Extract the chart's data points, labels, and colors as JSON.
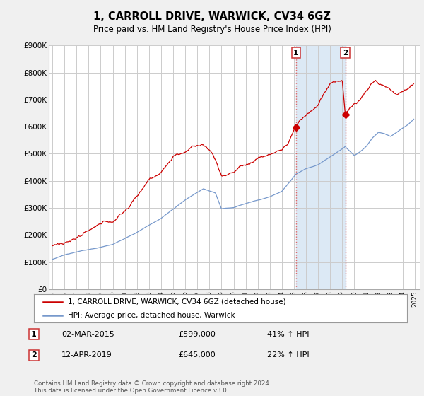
{
  "title": "1, CARROLL DRIVE, WARWICK, CV34 6GZ",
  "subtitle": "Price paid vs. HM Land Registry's House Price Index (HPI)",
  "ylim": [
    0,
    900000
  ],
  "yticks": [
    0,
    100000,
    200000,
    300000,
    400000,
    500000,
    600000,
    700000,
    800000,
    900000
  ],
  "ytick_labels": [
    "£0",
    "£100K",
    "£200K",
    "£300K",
    "£400K",
    "£500K",
    "£600K",
    "£700K",
    "£800K",
    "£900K"
  ],
  "hpi_color": "#7799cc",
  "price_color": "#cc0000",
  "annotation_fill": "#dce9f5",
  "vline_color": "#dd6666",
  "legend_price_label": "1, CARROLL DRIVE, WARWICK, CV34 6GZ (detached house)",
  "legend_hpi_label": "HPI: Average price, detached house, Warwick",
  "table_row1": [
    "1",
    "02-MAR-2015",
    "£599,000",
    "41% ↑ HPI"
  ],
  "table_row2": [
    "2",
    "12-APR-2019",
    "£645,000",
    "22% ↑ HPI"
  ],
  "footnote": "Contains HM Land Registry data © Crown copyright and database right 2024.\nThis data is licensed under the Open Government Licence v3.0.",
  "background_color": "#f0f0f0",
  "plot_bg_color": "#ffffff",
  "grid_color": "#cccccc",
  "sale1_price": 599000,
  "sale2_price": 645000,
  "hpi_at_sale1": 424823,
  "hpi_at_sale2": 528689
}
